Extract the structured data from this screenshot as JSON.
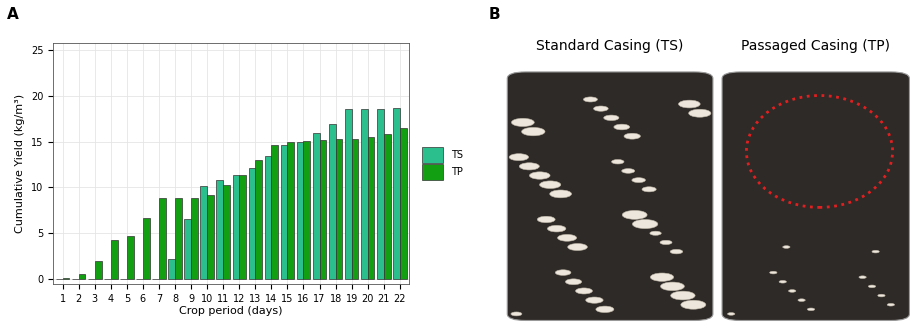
{
  "chart_data": {
    "type": "bar",
    "x_label": "Crop period (days)",
    "y_label": "Cumulative Yield (kg/m³)",
    "categories": [
      "1",
      "2",
      "3",
      "4",
      "5",
      "6",
      "7",
      "8",
      "9",
      "10",
      "11",
      "12",
      "13",
      "14",
      "15",
      "16",
      "17",
      "18",
      "19",
      "20",
      "21",
      "22"
    ],
    "series": [
      {
        "name": "TS",
        "color": "#2bbf8e",
        "values": [
          0,
          0,
          0,
          0,
          0,
          0,
          0,
          2.2,
          6.5,
          10.1,
          10.8,
          11.3,
          12.1,
          13.4,
          14.6,
          15.0,
          15.9,
          16.9,
          18.5,
          18.5,
          18.6,
          18.7
        ]
      },
      {
        "name": "TP",
        "color": "#12a012",
        "values": [
          0.1,
          0.5,
          2.0,
          4.3,
          4.7,
          6.7,
          8.8,
          8.8,
          8.8,
          9.2,
          10.3,
          11.3,
          13.0,
          14.6,
          15.0,
          15.1,
          15.2,
          15.3,
          15.3,
          15.5,
          15.8,
          16.5
        ]
      }
    ],
    "ylim": [
      -0.6,
      25.8
    ],
    "yticks": [
      0,
      5,
      10,
      15,
      20,
      25
    ],
    "grid": true,
    "legend": "right"
  },
  "panel_labels": [
    "A",
    "B"
  ],
  "photo_titles": [
    "Standard Casing (TS)",
    "Passaged Casing (TP)"
  ]
}
